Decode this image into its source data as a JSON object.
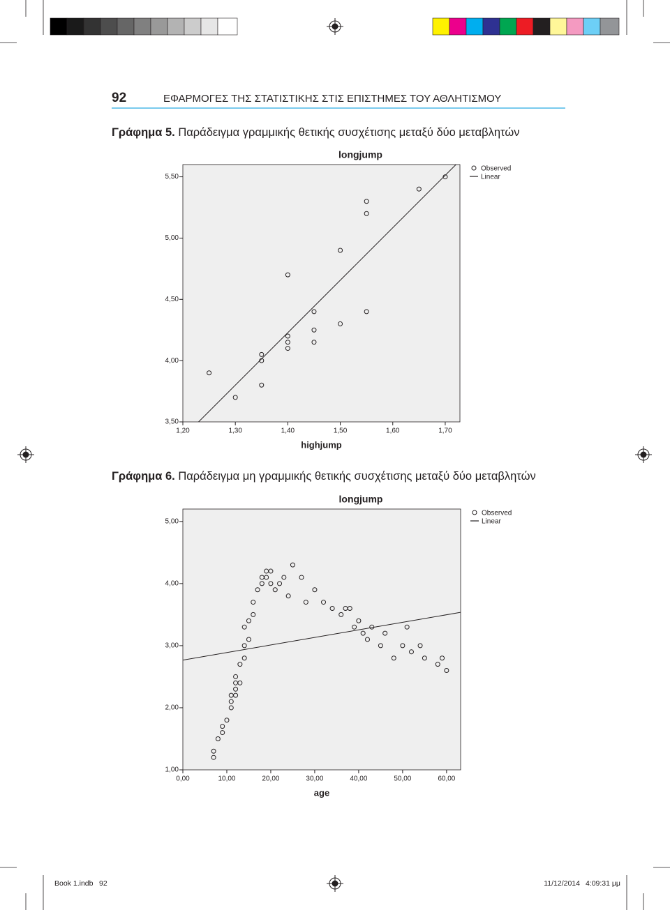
{
  "header": {
    "page_number": "92",
    "running_title": "ΕΦΑΡΜΟΓΕΣ ΤΗΣ ΣΤΑΤΙΣΤΙΚΗΣ ΣΤΙΣ ΕΠΙΣΤΗΜΕΣ ΤΟΥ ΑΘΛΗΤΙΣΜΟΥ"
  },
  "figures": [
    {
      "label": "Γράφημα 5.",
      "caption": "Παράδειγμα γραμμικής θετικής συσχέτισης μεταξύ δύο μεταβλητών"
    },
    {
      "label": "Γράφημα 6.",
      "caption": "Παράδειγμα μη γραμμικής θετικής συσχέτισης μεταξύ δύο μεταβλητών"
    }
  ],
  "chart_data": [
    {
      "type": "scatter",
      "title": "longjump",
      "x_label": "highjump",
      "x": [
        1.25,
        1.3,
        1.35,
        1.35,
        1.35,
        1.4,
        1.4,
        1.4,
        1.4,
        1.45,
        1.45,
        1.45,
        1.5,
        1.5,
        1.55,
        1.55,
        1.55,
        1.65,
        1.7
      ],
      "series": [
        {
          "name": "Observed",
          "color": "#231f20",
          "values": [
            3.9,
            3.7,
            4.05,
            4.0,
            3.8,
            4.7,
            4.2,
            4.15,
            4.1,
            4.4,
            4.25,
            4.15,
            4.9,
            4.3,
            5.3,
            5.2,
            4.4,
            5.4,
            5.5
          ]
        }
      ],
      "fit": {
        "name": "Linear",
        "kind": "linear",
        "color": "#231f20"
      },
      "xlim": [
        1.2,
        1.728
      ],
      "ylim": [
        3.5,
        5.6
      ],
      "xticks": [
        {
          "value": 1.2,
          "label": "1,20"
        },
        {
          "value": 1.3,
          "label": "1,30"
        },
        {
          "value": 1.4,
          "label": "1,40"
        },
        {
          "value": 1.5,
          "label": "1,50"
        },
        {
          "value": 1.6,
          "label": "1,60"
        },
        {
          "value": 1.7,
          "label": "1,70"
        }
      ],
      "yticks": [
        {
          "value": 3.5,
          "label": "3,50"
        },
        {
          "value": 4.0,
          "label": "4,00"
        },
        {
          "value": 4.5,
          "label": "4,50"
        },
        {
          "value": 5.0,
          "label": "5,00"
        },
        {
          "value": 5.5,
          "label": "5,50"
        }
      ],
      "legend": "outside-right"
    },
    {
      "type": "scatter",
      "title": "longjump",
      "x_label": "age",
      "x": [
        7,
        7,
        8,
        9,
        9,
        10,
        11,
        11,
        11,
        12,
        12,
        12,
        12,
        13,
        13,
        14,
        14,
        14,
        15,
        15,
        16,
        16,
        17,
        18,
        18,
        19,
        19,
        20,
        20,
        21,
        22,
        23,
        24,
        25,
        27,
        28,
        30,
        32,
        34,
        36,
        37,
        38,
        39,
        40,
        41,
        42,
        43,
        45,
        46,
        48,
        50,
        51,
        52,
        54,
        55,
        58,
        59,
        60
      ],
      "series": [
        {
          "name": "Observed",
          "color": "#231f20",
          "values": [
            1.3,
            1.2,
            1.5,
            1.7,
            1.6,
            1.8,
            2.0,
            2.1,
            2.2,
            2.2,
            2.3,
            2.4,
            2.5,
            2.4,
            2.7,
            2.8,
            3.0,
            3.3,
            3.1,
            3.4,
            3.5,
            3.7,
            3.9,
            4.0,
            4.1,
            4.1,
            4.2,
            4.2,
            4.0,
            3.9,
            4.0,
            4.1,
            3.8,
            4.3,
            4.1,
            3.7,
            3.9,
            3.7,
            3.6,
            3.5,
            3.6,
            3.6,
            3.3,
            3.4,
            3.2,
            3.1,
            3.3,
            3.0,
            3.2,
            2.8,
            3.0,
            3.3,
            2.9,
            3.0,
            2.8,
            2.7,
            2.8,
            2.6
          ]
        }
      ],
      "fit": {
        "name": "Linear",
        "kind": "linear",
        "color": "#231f20"
      },
      "xlim": [
        0,
        63.2
      ],
      "ylim": [
        1,
        5.2
      ],
      "xticks": [
        {
          "value": 0,
          "label": "0,00"
        },
        {
          "value": 10,
          "label": "10,00"
        },
        {
          "value": 20,
          "label": "20,00"
        },
        {
          "value": 30,
          "label": "30,00"
        },
        {
          "value": 40,
          "label": "40,00"
        },
        {
          "value": 50,
          "label": "50,00"
        },
        {
          "value": 60,
          "label": "60,00"
        }
      ],
      "yticks": [
        {
          "value": 1,
          "label": "1,00"
        },
        {
          "value": 2,
          "label": "2,00"
        },
        {
          "value": 3,
          "label": "3,00"
        },
        {
          "value": 4,
          "label": "4,00"
        },
        {
          "value": 5,
          "label": "5,00"
        }
      ],
      "legend": "outside-right"
    }
  ],
  "footer": {
    "file": "Book 1.indb",
    "page": "92",
    "date": "11/12/2014",
    "time": "4:09:31 μμ"
  }
}
